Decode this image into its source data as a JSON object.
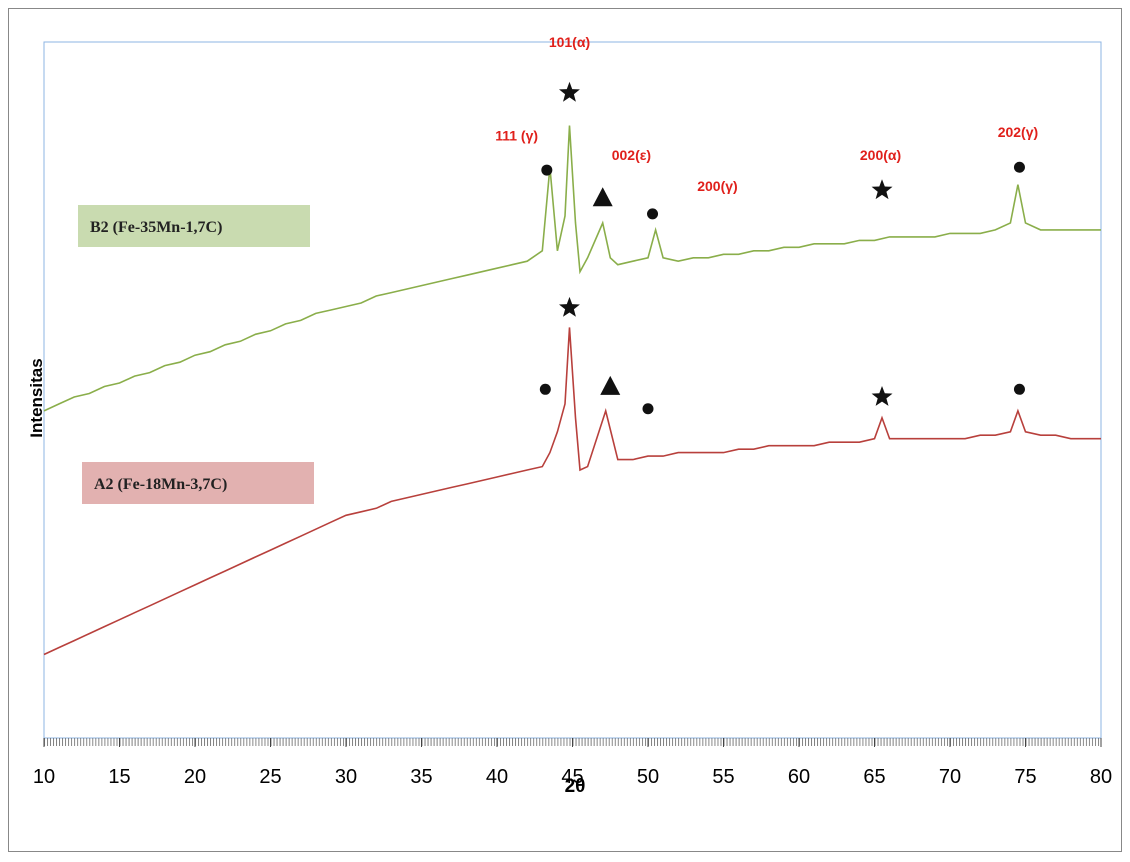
{
  "chart_data": {
    "type": "line",
    "x_label": "2θ",
    "y_label": "Intensitas",
    "xlim": [
      10,
      80
    ],
    "xticks": [
      10,
      15,
      20,
      25,
      30,
      35,
      40,
      45,
      50,
      55,
      60,
      65,
      70,
      75,
      80
    ],
    "ylim": [
      0,
      100
    ],
    "series": [
      {
        "name": "B2 (Fe-35Mn-1,7C)",
        "color": "#8aae4a",
        "label_color": "#c9dbb0",
        "x": [
          10,
          11,
          12,
          13,
          14,
          15,
          16,
          17,
          18,
          19,
          20,
          21,
          22,
          23,
          24,
          25,
          26,
          27,
          28,
          29,
          30,
          31,
          32,
          33,
          34,
          35,
          36,
          37,
          38,
          39,
          40,
          41,
          42,
          43,
          43.5,
          44,
          44.5,
          44.8,
          45.2,
          45.5,
          46,
          47,
          47.5,
          48,
          49,
          50,
          50.5,
          51,
          52,
          53,
          54,
          55,
          56,
          57,
          58,
          59,
          60,
          61,
          62,
          63,
          64,
          65,
          66,
          67,
          68,
          69,
          70,
          71,
          72,
          73,
          74,
          74.5,
          75,
          76,
          77,
          78,
          79,
          80
        ],
        "values": [
          47,
          48,
          49,
          49.5,
          50.5,
          51,
          52,
          52.5,
          53.5,
          54,
          55,
          55.5,
          56.5,
          57,
          58,
          58.5,
          59.5,
          60,
          61,
          61.5,
          62,
          62.5,
          63.5,
          64,
          64.5,
          65,
          65.5,
          66,
          66.5,
          67,
          67.5,
          68,
          68.5,
          70,
          82,
          70,
          75,
          88,
          74,
          67,
          69,
          74,
          69,
          68,
          68.5,
          69,
          73,
          69,
          68.5,
          69,
          69,
          69.5,
          69.5,
          70,
          70,
          70.5,
          70.5,
          71,
          71,
          71,
          71.5,
          71.5,
          72,
          72,
          72,
          72,
          72.5,
          72.5,
          72.5,
          73,
          74,
          79.5,
          74,
          73,
          73,
          73,
          73,
          73
        ]
      },
      {
        "name": "A2 (Fe-18Mn-3,7C)",
        "color": "#b8403c",
        "label_color": "#e2b1b0",
        "x": [
          10,
          11,
          12,
          13,
          14,
          15,
          16,
          17,
          18,
          19,
          20,
          21,
          22,
          23,
          24,
          25,
          26,
          27,
          28,
          29,
          30,
          31,
          32,
          33,
          34,
          35,
          36,
          37,
          38,
          39,
          40,
          41,
          42,
          43,
          43.5,
          44,
          44.5,
          44.8,
          45.2,
          45.5,
          46,
          47.2,
          48,
          49,
          50,
          51,
          52,
          53,
          54,
          55,
          56,
          57,
          58,
          59,
          60,
          61,
          62,
          63,
          64,
          65,
          65.5,
          66,
          67,
          68,
          69,
          70,
          71,
          72,
          73,
          74,
          74.5,
          75,
          76,
          77,
          78,
          79,
          80
        ],
        "values": [
          12,
          13,
          14,
          15,
          16,
          17,
          18,
          19,
          20,
          21,
          22,
          23,
          24,
          25,
          26,
          27,
          28,
          29,
          30,
          31,
          32,
          32.5,
          33,
          34,
          34.5,
          35,
          35.5,
          36,
          36.5,
          37,
          37.5,
          38,
          38.5,
          39,
          41,
          44,
          48,
          59,
          46,
          38.5,
          39,
          47,
          40,
          40,
          40.5,
          40.5,
          41,
          41,
          41,
          41,
          41.5,
          41.5,
          42,
          42,
          42,
          42,
          42.5,
          42.5,
          42.5,
          43,
          46,
          43,
          43,
          43,
          43,
          43,
          43,
          43.5,
          43.5,
          44,
          47,
          44,
          43.5,
          43.5,
          43,
          43,
          43
        ]
      }
    ],
    "markers": [
      {
        "shape": "star",
        "x": 44.8,
        "y": 92.7
      },
      {
        "shape": "circle",
        "x": 43.3,
        "y": 81.6
      },
      {
        "shape": "triangle",
        "x": 47.0,
        "y": 77.7
      },
      {
        "shape": "circle",
        "x": 50.3,
        "y": 75.3
      },
      {
        "shape": "star",
        "x": 65.5,
        "y": 78.7
      },
      {
        "shape": "circle",
        "x": 74.6,
        "y": 82
      },
      {
        "shape": "star",
        "x": 44.8,
        "y": 61.8
      },
      {
        "shape": "circle",
        "x": 43.2,
        "y": 50.1
      },
      {
        "shape": "triangle",
        "x": 47.5,
        "y": 50.6
      },
      {
        "shape": "circle",
        "x": 50.0,
        "y": 47.3
      },
      {
        "shape": "star",
        "x": 65.5,
        "y": 49
      },
      {
        "shape": "circle",
        "x": 74.6,
        "y": 50.1
      }
    ],
    "annotations": [
      {
        "text": "101(α)",
        "x": 44.8,
        "y": 100
      },
      {
        "text": "111 (γ)",
        "x": 41.3,
        "y": 86.6
      },
      {
        "text": "002(ε)",
        "x": 48.9,
        "y": 83.8
      },
      {
        "text": "200(γ)",
        "x": 54.6,
        "y": 79.3
      },
      {
        "text": "200(α)",
        "x": 65.4,
        "y": 83.8
      },
      {
        "text": "202(γ)",
        "x": 74.5,
        "y": 87.1
      }
    ]
  }
}
